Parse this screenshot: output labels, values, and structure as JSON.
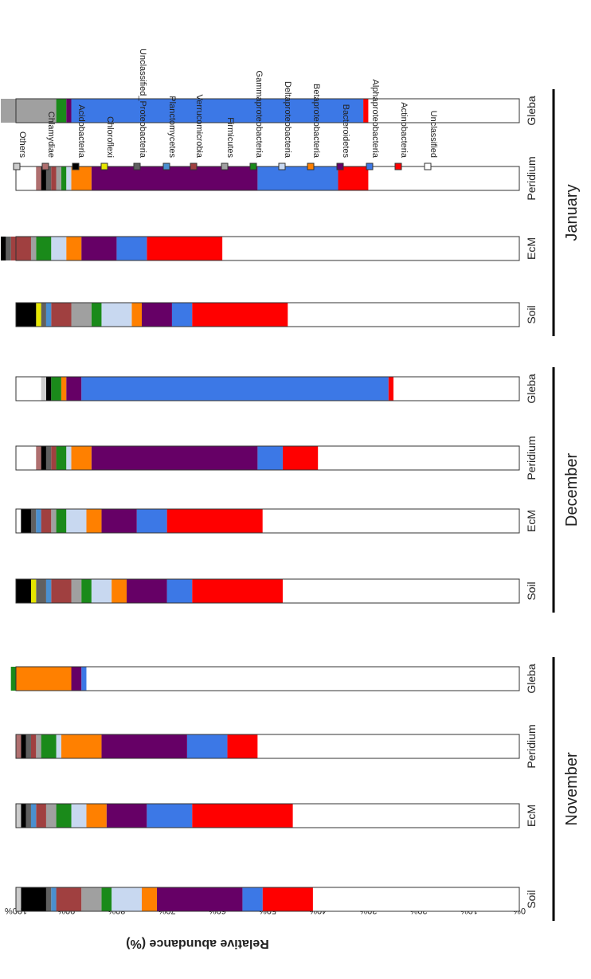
{
  "chart_data": {
    "type": "bar",
    "stacked": true,
    "orientation": "horizontal",
    "ylabel": "Relative abundance (%)",
    "xlim": [
      0,
      100
    ],
    "ticks": [
      "0%",
      "10%",
      "20%",
      "30%",
      "40%",
      "50%",
      "60%",
      "70%",
      "80%",
      "90%",
      "100%"
    ],
    "groups": [
      {
        "label": "November",
        "categories": [
          "Soil",
          "EcM",
          "Peridium",
          "Gleba"
        ]
      },
      {
        "label": "December",
        "categories": [
          "Soil",
          "EcM",
          "Peridium",
          "Gleba"
        ]
      },
      {
        "label": "January",
        "categories": [
          "Soil",
          "EcM",
          "Peridium",
          "Gleba"
        ]
      }
    ],
    "categories": [
      "Soil",
      "EcM",
      "Peridium",
      "Gleba",
      "Soil",
      "EcM",
      "Peridium",
      "Gleba",
      "Soil",
      "EcM",
      "Peridium",
      "Gleba"
    ],
    "legend_position": "right",
    "series": [
      {
        "name": "Unclassified",
        "color": "#ffffff",
        "values": [
          41,
          45,
          52,
          86,
          47,
          51,
          40,
          25,
          46,
          59,
          30,
          30
        ]
      },
      {
        "name": "Actinobacteria",
        "color": "#ff0000",
        "values": [
          10,
          20,
          6,
          0,
          18,
          19,
          7,
          1,
          19,
          15,
          6,
          1
        ]
      },
      {
        "name": "Alphaproteobacteria",
        "color": "#3c78e6",
        "values": [
          4,
          9,
          8,
          1,
          5,
          6,
          5,
          61,
          4,
          6,
          16,
          58
        ]
      },
      {
        "name": "Bacteroidetes",
        "color": "#660066",
        "values": [
          17,
          8,
          17,
          2,
          8,
          7,
          33,
          3,
          6,
          7,
          33,
          1
        ]
      },
      {
        "name": "Betaproteobacteria",
        "color": "#ff8000",
        "values": [
          3,
          4,
          8,
          11,
          3,
          3,
          4,
          1,
          2,
          3,
          4,
          0
        ]
      },
      {
        "name": "Deltaproteobacteria",
        "color": "#c8d8f0",
        "values": [
          6,
          3,
          1,
          0,
          4,
          4,
          1,
          0,
          6,
          3,
          1,
          0
        ]
      },
      {
        "name": "Gammaproteobacteria",
        "color": "#1a8a1a",
        "values": [
          2,
          3,
          3,
          1,
          2,
          2,
          2,
          2,
          2,
          3,
          1,
          2
        ]
      },
      {
        "name": "Firmicutes",
        "color": "#a0a0a0",
        "values": [
          4,
          2,
          1,
          0,
          2,
          1,
          0,
          0,
          4,
          1,
          1,
          11
        ]
      },
      {
        "name": "Verrucomicrobia",
        "color": "#a04040",
        "values": [
          5,
          2,
          1,
          0,
          4,
          2,
          1,
          0,
          4,
          4,
          1,
          0
        ]
      },
      {
        "name": "Planctomycetes",
        "color": "#4a90d0",
        "values": [
          1,
          1,
          0,
          0,
          1,
          1,
          0,
          0,
          1,
          0,
          0,
          0
        ]
      },
      {
        "name": "Unclassified_Proteobacteria",
        "color": "#606060",
        "values": [
          1,
          1,
          1,
          0,
          2,
          1,
          1,
          0,
          1,
          1,
          1,
          0
        ]
      },
      {
        "name": "Chloroflexi",
        "color": "#e6e600",
        "values": [
          0,
          0,
          0,
          0,
          1,
          0,
          0,
          0,
          1,
          0,
          0,
          0
        ]
      },
      {
        "name": "Acidobacteria",
        "color": "#000000",
        "values": [
          5,
          1,
          1,
          0,
          3,
          2,
          1,
          1,
          4,
          1,
          1,
          0
        ]
      },
      {
        "name": "Chlamydiae",
        "color": "#b07070",
        "values": [
          0,
          0,
          1,
          0,
          0,
          0,
          1,
          0,
          0,
          0,
          1,
          0
        ]
      },
      {
        "name": "Others",
        "color": "#cccccc",
        "values": [
          1,
          1,
          0,
          0,
          0,
          0,
          0,
          1,
          0,
          0,
          0,
          0
        ]
      }
    ]
  }
}
